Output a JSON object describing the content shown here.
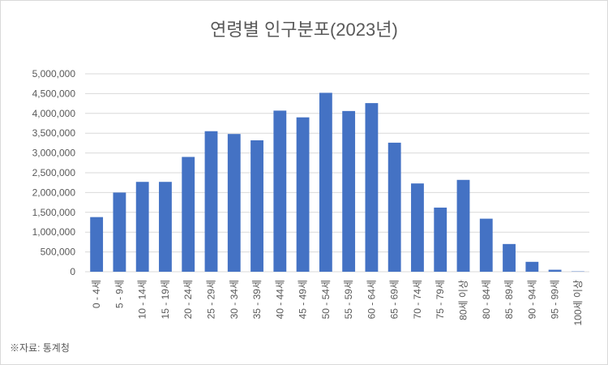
{
  "chart_data": {
    "type": "bar",
    "title": "연령별 인구분포(2023년)",
    "source": "※자료: 통계청",
    "categories": [
      "0 - 4세",
      "5 - 9세",
      "10 - 14세",
      "15 - 19세",
      "20 - 24세",
      "25 - 29세",
      "30 - 34세",
      "35 - 39세",
      "40 - 44세",
      "45 - 49세",
      "50 - 54세",
      "55 - 59세",
      "60 - 64세",
      "65 - 69세",
      "70 - 74세",
      "75 - 79세",
      "80세 이상",
      "80 - 84세",
      "85 - 89세",
      "90 - 94세",
      "95 - 99세",
      "100세 이상"
    ],
    "values": [
      1380000,
      2000000,
      2270000,
      2270000,
      2900000,
      3550000,
      3480000,
      3320000,
      4070000,
      3900000,
      4520000,
      4060000,
      4260000,
      3260000,
      2230000,
      1620000,
      2320000,
      1340000,
      700000,
      250000,
      50000,
      8000
    ],
    "color": "#4472c4",
    "ylim": [
      0,
      5000000
    ],
    "yticks": [
      0,
      {
        "value": 500000,
        "label": "500,000"
      },
      {
        "value": 1000000,
        "label": "1,000,000"
      },
      {
        "value": 1500000,
        "label": "1,500,000"
      },
      {
        "value": 2000000,
        "label": "2,000,000"
      },
      {
        "value": 2500000,
        "label": "2,500,000"
      },
      {
        "value": 3000000,
        "label": "3,000,000"
      },
      {
        "value": 3500000,
        "label": "3,500,000"
      },
      {
        "value": 4000000,
        "label": "4,000,000"
      },
      {
        "value": 4500000,
        "label": "4,500,000"
      },
      {
        "value": 5000000,
        "label": "5,000,000"
      }
    ],
    "grid": true
  }
}
